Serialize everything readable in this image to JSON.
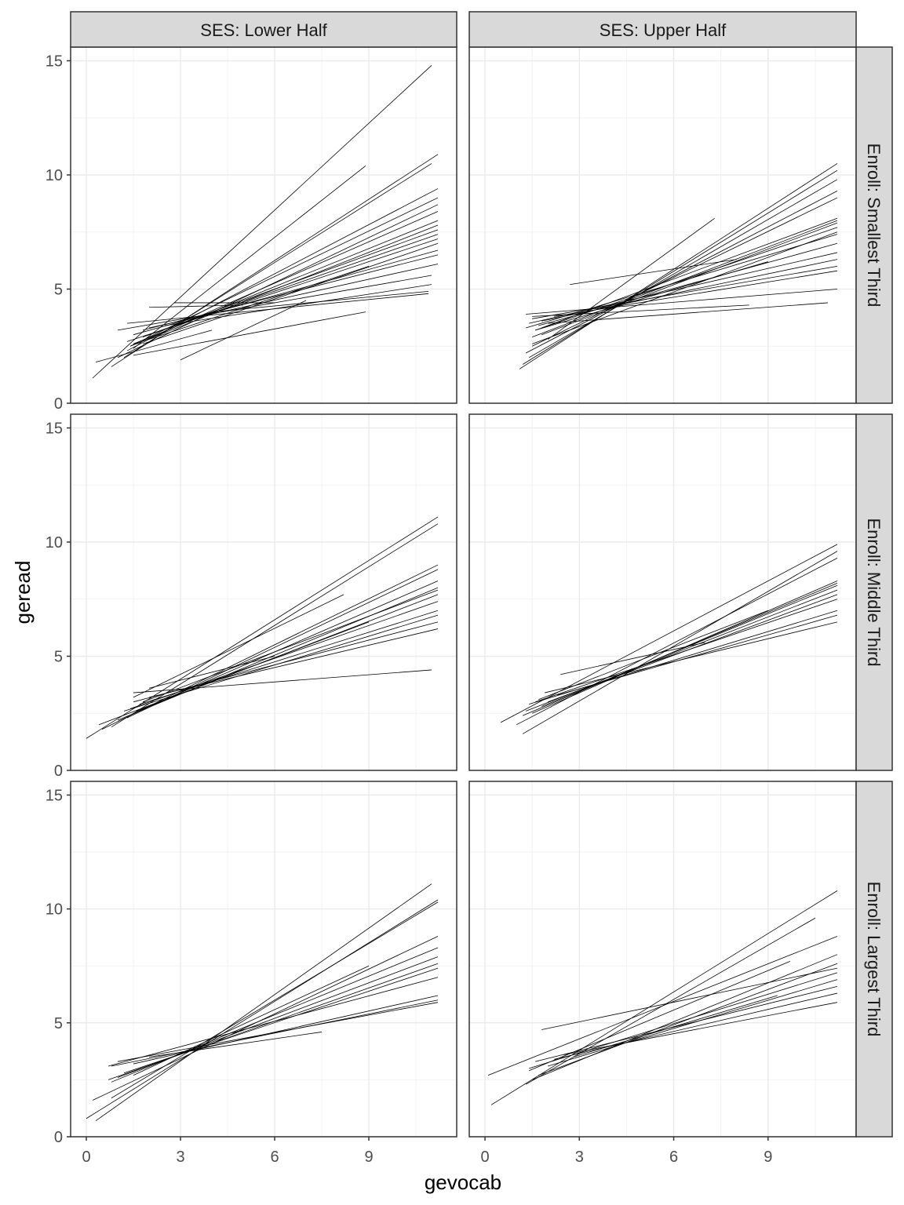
{
  "chart_data": {
    "type": "line",
    "xlabel": "gevocab",
    "ylabel": "geread",
    "xlim": [
      -0.5,
      11.8
    ],
    "ylim": [
      0,
      15.6
    ],
    "x_ticks": [
      "0",
      "3",
      "6",
      "9"
    ],
    "y_ticks": [
      "0",
      "5",
      "10",
      "15"
    ],
    "grid": true,
    "line_color": "#000000",
    "column_facets": [
      "SES: Lower Half",
      "SES: Upper Half"
    ],
    "row_facets": [
      "Enroll: Smallest Third",
      "Enroll: Middle Third",
      "Enroll: Largest Third"
    ],
    "panels": [
      {
        "col": 0,
        "row": 0,
        "segments": [
          [
            0.2,
            1.1,
            11,
            14.8
          ],
          [
            1.5,
            2.4,
            8.9,
            10.4
          ],
          [
            0.8,
            1.6,
            11.2,
            10.9
          ],
          [
            1.2,
            2.0,
            11,
            10.5
          ],
          [
            1.3,
            2.3,
            11.2,
            9.4
          ],
          [
            1.4,
            2.5,
            11.2,
            9.0
          ],
          [
            1.0,
            2.0,
            11.2,
            8.7
          ],
          [
            1.6,
            2.6,
            11.2,
            8.4
          ],
          [
            1.5,
            2.6,
            11.2,
            8.0
          ],
          [
            1.4,
            2.5,
            11.2,
            7.8
          ],
          [
            2.0,
            3.0,
            11.2,
            7.6
          ],
          [
            1.8,
            2.9,
            11.2,
            7.4
          ],
          [
            1.3,
            2.7,
            11.2,
            7.2
          ],
          [
            1.5,
            3.0,
            11.2,
            6.7
          ],
          [
            1.8,
            3.2,
            11.2,
            6.5
          ],
          [
            2.0,
            3.3,
            11.2,
            6.1
          ],
          [
            1.0,
            3.2,
            11,
            5.6
          ],
          [
            2.5,
            3.4,
            11,
            5.2
          ],
          [
            1.3,
            3.5,
            10.9,
            4.8
          ],
          [
            4.0,
            4.0,
            10.9,
            4.9
          ],
          [
            2.0,
            4.2,
            5.0,
            4.3
          ],
          [
            2.8,
            4.4,
            6.0,
            4.4
          ],
          [
            1.5,
            2.1,
            8.9,
            4.0
          ],
          [
            0.3,
            1.8,
            4.0,
            3.2
          ],
          [
            3.0,
            1.9,
            7.0,
            4.5
          ],
          [
            2.0,
            2.8,
            9,
            6.0
          ],
          [
            1.8,
            2.6,
            11.2,
            7.0
          ]
        ]
      },
      {
        "col": 1,
        "row": 0,
        "segments": [
          [
            1.1,
            1.5,
            11.2,
            10.5
          ],
          [
            1.2,
            1.7,
            11.2,
            10.2
          ],
          [
            1.4,
            2.0,
            11.2,
            9.8
          ],
          [
            1.3,
            2.2,
            11.2,
            9.3
          ],
          [
            1.5,
            2.5,
            11.2,
            9.0
          ],
          [
            2.0,
            2.8,
            7.3,
            8.1
          ],
          [
            1.5,
            2.9,
            11.2,
            8.0
          ],
          [
            1.8,
            3.0,
            11.2,
            7.9
          ],
          [
            1.6,
            3.2,
            11.2,
            7.7
          ],
          [
            1.3,
            3.3,
            11.2,
            7.4
          ],
          [
            1.7,
            3.4,
            11.2,
            7.0
          ],
          [
            1.4,
            3.5,
            11.2,
            6.6
          ],
          [
            1.8,
            3.6,
            11.2,
            6.3
          ],
          [
            1.5,
            3.7,
            11.2,
            6.0
          ],
          [
            2.2,
            3.8,
            11.2,
            5.8
          ],
          [
            1.3,
            3.9,
            11.2,
            5.0
          ],
          [
            2.0,
            3.5,
            10.9,
            4.4
          ],
          [
            1.5,
            3.8,
            8.4,
            4.3
          ],
          [
            2.7,
            5.2,
            8,
            6.3
          ],
          [
            1.6,
            3.2,
            9,
            6.2
          ],
          [
            1.8,
            3.3,
            11.2,
            8.1
          ],
          [
            1.5,
            2.6,
            11.2,
            7.5
          ]
        ]
      },
      {
        "col": 0,
        "row": 1,
        "segments": [
          [
            0,
            1.4,
            11.2,
            11.1
          ],
          [
            0.8,
            1.9,
            11.2,
            10.8
          ],
          [
            0.5,
            1.8,
            11.2,
            9.0
          ],
          [
            1.3,
            2.3,
            11.2,
            8.8
          ],
          [
            1.5,
            2.5,
            11.2,
            8.3
          ],
          [
            1.0,
            2.2,
            11.2,
            8.0
          ],
          [
            1.6,
            2.6,
            11.2,
            7.7
          ],
          [
            1.4,
            2.7,
            11.2,
            7.4
          ],
          [
            1.7,
            2.9,
            11.2,
            7.0
          ],
          [
            1.2,
            2.6,
            11.2,
            6.8
          ],
          [
            1.5,
            3.0,
            11.2,
            6.5
          ],
          [
            2.0,
            3.2,
            11.2,
            6.2
          ],
          [
            1.5,
            3.4,
            11,
            4.4
          ],
          [
            2.0,
            3.6,
            6,
            5.0
          ],
          [
            1.5,
            3.2,
            8.2,
            7.7
          ],
          [
            0.4,
            2.0,
            9,
            6.5
          ],
          [
            1.8,
            3.0,
            11.2,
            7.9
          ]
        ]
      },
      {
        "col": 1,
        "row": 1,
        "segments": [
          [
            0.5,
            2.1,
            11.2,
            9.9
          ],
          [
            1.2,
            1.6,
            11.2,
            9.6
          ],
          [
            1.0,
            2.0,
            11.2,
            9.3
          ],
          [
            1.5,
            2.5,
            11.2,
            8.3
          ],
          [
            1.8,
            2.8,
            11.2,
            8.1
          ],
          [
            1.3,
            2.6,
            11.2,
            7.9
          ],
          [
            2.0,
            3.0,
            11.2,
            7.7
          ],
          [
            1.6,
            3.0,
            11.2,
            7.5
          ],
          [
            1.4,
            2.9,
            11.2,
            7.0
          ],
          [
            2.3,
            3.3,
            11.2,
            6.8
          ],
          [
            1.9,
            3.4,
            11.2,
            6.5
          ],
          [
            2.4,
            4.2,
            7,
            5.6
          ],
          [
            1.7,
            3.1,
            9,
            7.0
          ],
          [
            1.2,
            2.4,
            11.2,
            8.2
          ]
        ]
      },
      {
        "col": 0,
        "row": 2,
        "segments": [
          [
            0.3,
            0.7,
            11,
            11.1
          ],
          [
            0,
            0.8,
            11.2,
            10.4
          ],
          [
            0.8,
            1.7,
            11.2,
            10.3
          ],
          [
            0.2,
            1.6,
            11.2,
            8.8
          ],
          [
            0.8,
            2.4,
            11.2,
            8.3
          ],
          [
            1.0,
            2.6,
            11.2,
            7.9
          ],
          [
            0.7,
            2.5,
            11.2,
            7.6
          ],
          [
            1.2,
            2.8,
            11.2,
            7.4
          ],
          [
            0.7,
            3.1,
            11.2,
            7.0
          ],
          [
            1.5,
            3.2,
            11.2,
            6.2
          ],
          [
            0.8,
            3.1,
            11.2,
            6.0
          ],
          [
            1.0,
            3.3,
            11.2,
            5.9
          ],
          [
            2.0,
            3.5,
            7.5,
            4.6
          ],
          [
            1.5,
            2.7,
            9,
            7.5
          ]
        ]
      },
      {
        "col": 1,
        "row": 2,
        "segments": [
          [
            0.2,
            1.4,
            11.2,
            10.8
          ],
          [
            1.3,
            2.3,
            10.5,
            9.6
          ],
          [
            0.1,
            2.7,
            11.2,
            8.8
          ],
          [
            1.5,
            2.5,
            11.2,
            8.0
          ],
          [
            1.7,
            2.7,
            11.2,
            7.6
          ],
          [
            1.8,
            4.7,
            11.2,
            7.4
          ],
          [
            1.4,
            3.0,
            11.2,
            7.2
          ],
          [
            2.0,
            3.1,
            11.2,
            6.9
          ],
          [
            1.6,
            3.3,
            11.2,
            6.6
          ],
          [
            2.2,
            3.4,
            11.2,
            6.3
          ],
          [
            2.5,
            3.6,
            11.2,
            5.9
          ],
          [
            1.4,
            2.9,
            9.7,
            7.7
          ],
          [
            2.8,
            3.5,
            9.3,
            6.2
          ]
        ]
      }
    ]
  }
}
